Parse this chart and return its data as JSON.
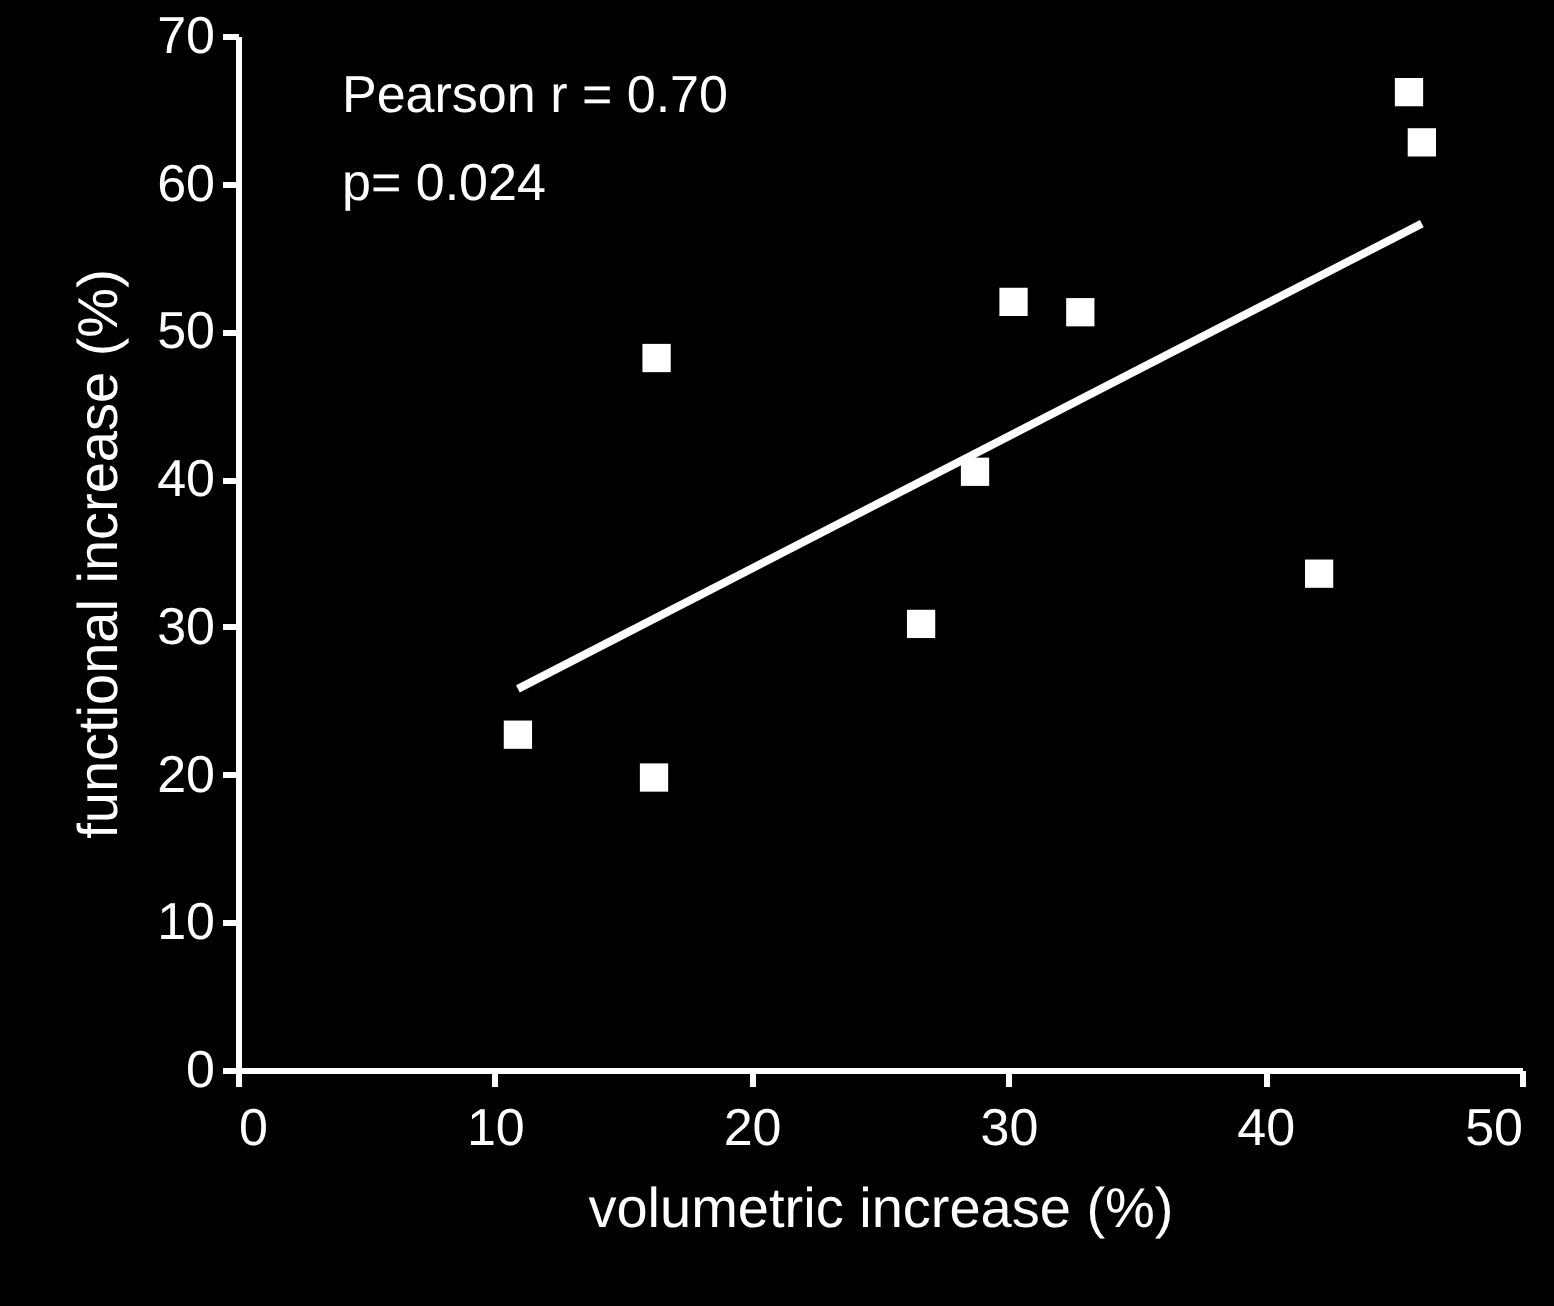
{
  "chart_data": {
    "type": "scatter",
    "xlabel": "volumetric increase (%)",
    "ylabel": "functional increase (%)",
    "annotations": [
      "Pearson r = 0.70",
      "p= 0.024"
    ],
    "xlim": [
      0,
      50
    ],
    "xticks": [
      0,
      10,
      20,
      30,
      40,
      50
    ],
    "ylim": [
      0,
      70
    ],
    "yticks": [
      0,
      10,
      20,
      30,
      40,
      50,
      60,
      70
    ],
    "grid": false,
    "series": [
      {
        "marker": "square",
        "color": "#ffffff",
        "x": [
          10.9,
          16.2,
          16.3,
          26.6,
          30.2,
          28.7,
          32.8,
          42.1,
          45.6,
          46.1
        ],
        "values": [
          22.7,
          19.8,
          48.2,
          30.2,
          52.0,
          40.5,
          51.3,
          33.6,
          66.2,
          62.8
        ]
      },
      {
        "type": "line",
        "marker": "none",
        "color": "#ffffff",
        "x": [
          10.9,
          46.1
        ],
        "values": [
          25.8,
          57.3
        ]
      }
    ]
  }
}
